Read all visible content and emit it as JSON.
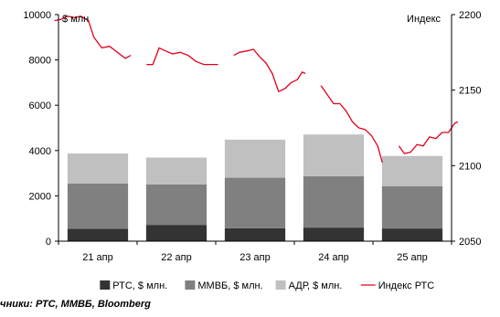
{
  "chart_data": {
    "type": "bar",
    "categories": [
      "21 апр",
      "22 апр",
      "23 апр",
      "24 апр",
      "25 апр"
    ],
    "series": [
      {
        "name": "РТС, $ млн.",
        "type": "stacked-bar",
        "axis": "left",
        "color": "#333333",
        "values": [
          550,
          720,
          570,
          600,
          560
        ]
      },
      {
        "name": "ММВБ, $ млн.",
        "type": "stacked-bar",
        "axis": "left",
        "color": "#808080",
        "values": [
          1990,
          1790,
          2230,
          2270,
          1860
        ]
      },
      {
        "name": "АДР, $ млн.",
        "type": "stacked-bar",
        "axis": "left",
        "color": "#c0c0c0",
        "values": [
          1330,
          1180,
          1680,
          1840,
          1340
        ]
      },
      {
        "name": "Индекс РТС",
        "type": "line",
        "axis": "right",
        "color": "#e0001b",
        "segments": [
          [
            [
              -0.55,
              2196
            ],
            [
              -0.46,
              2197
            ],
            [
              -0.38,
              2199
            ],
            [
              -0.3,
              2198
            ],
            [
              -0.22,
              2199
            ],
            [
              -0.12,
              2196
            ],
            [
              -0.05,
              2185
            ],
            [
              0.05,
              2178
            ],
            [
              0.15,
              2179
            ],
            [
              0.25,
              2175
            ],
            [
              0.35,
              2171
            ],
            [
              0.42,
              2173
            ]
          ],
          [
            [
              0.62,
              2167
            ],
            [
              0.7,
              2167
            ],
            [
              0.78,
              2178
            ],
            [
              0.86,
              2176
            ],
            [
              0.95,
              2174
            ],
            [
              1.05,
              2175
            ],
            [
              1.15,
              2173
            ],
            [
              1.25,
              2169
            ],
            [
              1.35,
              2167
            ],
            [
              1.45,
              2167
            ],
            [
              1.53,
              2167
            ]
          ],
          [
            [
              1.73,
              2173
            ],
            [
              1.8,
              2175
            ],
            [
              1.9,
              2176
            ],
            [
              1.98,
              2177
            ],
            [
              2.06,
              2172
            ],
            [
              2.14,
              2168
            ],
            [
              2.22,
              2161
            ],
            [
              2.3,
              2149
            ],
            [
              2.38,
              2151
            ],
            [
              2.46,
              2155
            ],
            [
              2.54,
              2157
            ],
            [
              2.6,
              2162
            ],
            [
              2.64,
              2161
            ]
          ],
          [
            [
              2.84,
              2153
            ],
            [
              2.92,
              2147
            ],
            [
              3.0,
              2141
            ],
            [
              3.08,
              2141
            ],
            [
              3.16,
              2136
            ],
            [
              3.24,
              2129
            ],
            [
              3.32,
              2125
            ],
            [
              3.4,
              2124
            ],
            [
              3.48,
              2120
            ],
            [
              3.56,
              2113
            ],
            [
              3.62,
              2102
            ]
          ],
          [
            [
              3.83,
              2113
            ],
            [
              3.9,
              2108
            ],
            [
              3.98,
              2109
            ],
            [
              4.06,
              2114
            ],
            [
              4.14,
              2113
            ],
            [
              4.22,
              2119
            ],
            [
              4.3,
              2118
            ],
            [
              4.38,
              2122
            ],
            [
              4.46,
              2122
            ],
            [
              4.54,
              2128
            ],
            [
              4.58,
              2129
            ]
          ]
        ]
      }
    ],
    "ylabel_left": "$ млн",
    "ylabel_right": "Индекс",
    "ylim_left": [
      0,
      10000
    ],
    "yticks_left": [
      "0",
      "2000",
      "4000",
      "6000",
      "8000",
      "10000"
    ],
    "ylim_right": [
      2050,
      2200
    ],
    "yticks_right": [
      "2050",
      "2100",
      "2150",
      "2200"
    ],
    "grid": false,
    "legend_position": "bottom"
  },
  "legend": [
    {
      "label": "РТС, $ млн.",
      "color": "#333333",
      "kind": "box"
    },
    {
      "label": "ММВБ, $ млн.",
      "color": "#808080",
      "kind": "box"
    },
    {
      "label": "АДР, $ млн.",
      "color": "#c0c0c0",
      "kind": "box"
    },
    {
      "label": "Индекс РТС",
      "color": "#e0001b",
      "kind": "line"
    }
  ],
  "source_note": "очники: РТС, ММВБ, Bloomberg"
}
